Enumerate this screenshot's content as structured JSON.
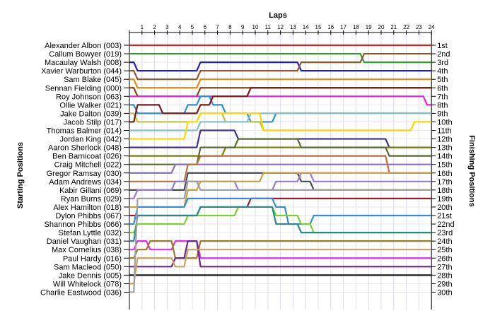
{
  "chart_data": {
    "type": "line",
    "title": "",
    "xlabel": "Laps",
    "ylabel_left": "Starting Positions",
    "ylabel_right": "Finishing Positions",
    "laps": [
      1,
      2,
      3,
      4,
      5,
      6,
      7,
      8,
      9,
      10,
      11,
      12,
      13,
      14,
      15,
      16,
      17,
      18,
      19,
      20,
      21,
      22,
      23,
      24
    ],
    "drivers": [
      "Alexander Albon (003)",
      "Callum Bowyer (019)",
      "Macaulay Walsh (008)",
      "Xavier Warburton (044)",
      "Sam Blake (045)",
      "Sennan Fielding (000)",
      "Roy Johnson (063)",
      "Ollie Walker (021)",
      "Jake Dalton (039)",
      "Jacob Stilp (017)",
      "Thomas Balmer (014)",
      "Jordan King (042)",
      "Aaron Sherlock (048)",
      "Ben Barnicoat (026)",
      "Craig Mitchell (022)",
      "Gregor Ramsay (030)",
      "Adam Andrews (034)",
      "Kabir Gillani (069)",
      "Ryan Burns (029)",
      "Alex Hamilton (018)",
      "Dylon Phibbs (067)",
      "Shannon Phibbs (066)",
      "Stefan Lyttle (032)",
      "Daniel Vaughan (031)",
      "Max Cornelius (038)",
      "Paul Hardy (016)",
      "Sam Macleod (050)",
      "Jake Dennis (005)",
      "Will Whitelock (078)",
      "Charlie Eastwood (036)"
    ],
    "finishing_labels": [
      "1st",
      "2nd",
      "3rd",
      "4th",
      "5th",
      "6th",
      "7th",
      "8th",
      "9th",
      "10th",
      "11th",
      "12th",
      "13th",
      "14th",
      "15th",
      "16th",
      "17th",
      "18th",
      "19th",
      "20th",
      "21st",
      "22nd",
      "23rd",
      "24th",
      "25th",
      "26th",
      "27th",
      "28th",
      "29th",
      "30th"
    ],
    "grid": true,
    "series": [
      {
        "color": "#d62728",
        "positions": [
          1,
          1,
          1,
          1,
          1,
          1,
          1,
          1,
          1,
          1,
          1,
          1,
          1,
          1,
          1,
          1,
          1,
          1,
          1,
          1,
          1,
          1,
          1,
          1,
          1
        ]
      },
      {
        "color": "#2ca02c",
        "positions": [
          2,
          2,
          2,
          2,
          2,
          2,
          2,
          2,
          2,
          2,
          2,
          2,
          2,
          2,
          2,
          2,
          2,
          2,
          2,
          3,
          3,
          3,
          3,
          3,
          3
        ]
      },
      {
        "color": "#2020c0",
        "positions": [
          3,
          4,
          4,
          4,
          4,
          4,
          3,
          3,
          3,
          3,
          3,
          3,
          3,
          3,
          4,
          4,
          4,
          4,
          4,
          4,
          4,
          4,
          4,
          4,
          4
        ]
      },
      {
        "color": "#8b5a2b",
        "positions": [
          4,
          5,
          5,
          5,
          5,
          5,
          4,
          4,
          4,
          4,
          4,
          4,
          4,
          4,
          3,
          3,
          3,
          3,
          3,
          2,
          2,
          2,
          2,
          2,
          2
        ]
      },
      {
        "color": "#e08a10",
        "positions": [
          5,
          6,
          6,
          6,
          6,
          6,
          5,
          5,
          5,
          5,
          5,
          5,
          5,
          5,
          5,
          5,
          5,
          5,
          5,
          5,
          5,
          5,
          5,
          5,
          5
        ]
      },
      {
        "color": "#8b4513",
        "positions": [
          6,
          7,
          7,
          7,
          7,
          7,
          6,
          6,
          6,
          6,
          6,
          6,
          6,
          6,
          6,
          6,
          6,
          6,
          6,
          6,
          6,
          6,
          6,
          6,
          6
        ]
      },
      {
        "color": "#e020e0",
        "positions": [
          7,
          7,
          7,
          7,
          7,
          7,
          7,
          7,
          7,
          7,
          7,
          7,
          7,
          7,
          7,
          7,
          7,
          7,
          7,
          7,
          7,
          7,
          7,
          7,
          8
        ]
      },
      {
        "color": "#2a8fd0",
        "positions": [
          8,
          9,
          9,
          9,
          9,
          8,
          7,
          8,
          9,
          9,
          10,
          10,
          9,
          9,
          9,
          9,
          9,
          9,
          9,
          9,
          9,
          9,
          9,
          9,
          9
        ]
      },
      {
        "color": "#c0c040",
        "positions": [
          9,
          10,
          10,
          10,
          10,
          10,
          9,
          9,
          10,
          10,
          10,
          11,
          11,
          11,
          11,
          11,
          11,
          11,
          11,
          11,
          11,
          11,
          11,
          10,
          10
        ]
      },
      {
        "color": "#7a1a1a",
        "positions": [
          10,
          8,
          8,
          9,
          9,
          9,
          8,
          7,
          7,
          7,
          6,
          6,
          6,
          6,
          6,
          6,
          6,
          6,
          6,
          6,
          6,
          6,
          6,
          6,
          6
        ]
      },
      {
        "color": "#7fc0c0",
        "positions": [
          11,
          11,
          11,
          11,
          11,
          11,
          10,
          10,
          10,
          10,
          9,
          9,
          9,
          9,
          9,
          9,
          9,
          9,
          9,
          9,
          9,
          9,
          9,
          9,
          9
        ]
      },
      {
        "color": "#ffd700",
        "positions": [
          12,
          12,
          12,
          12,
          12,
          10,
          9,
          9,
          9,
          9,
          9,
          11,
          11,
          11,
          11,
          11,
          11,
          11,
          11,
          11,
          11,
          11,
          11,
          10,
          10
        ]
      },
      {
        "color": "#40308a",
        "positions": [
          13,
          13,
          13,
          13,
          13,
          13,
          11,
          11,
          11,
          12,
          12,
          12,
          12,
          12,
          12,
          12,
          12,
          12,
          12,
          12,
          12,
          13,
          13,
          13,
          13
        ]
      },
      {
        "color": "#808000",
        "positions": [
          14,
          14,
          14,
          14,
          14,
          14,
          14,
          14,
          13,
          13,
          13,
          13,
          13,
          13,
          13,
          13,
          13,
          13,
          13,
          13,
          13,
          13,
          13,
          13,
          13
        ]
      },
      {
        "color": "#556b2f",
        "positions": [
          15,
          15,
          15,
          15,
          15,
          15,
          13,
          13,
          13,
          12,
          12,
          12,
          12,
          12,
          13,
          13,
          13,
          13,
          13,
          13,
          13,
          14,
          14,
          14,
          14
        ]
      },
      {
        "color": "#8a6fc0",
        "positions": [
          16,
          16,
          16,
          16,
          15,
          15,
          15,
          15,
          15,
          15,
          15,
          15,
          15,
          15,
          15,
          15,
          15,
          15,
          15,
          15,
          15,
          15,
          15,
          15,
          15
        ]
      },
      {
        "color": "#c07040",
        "positions": [
          17,
          17,
          17,
          17,
          17,
          15,
          14,
          14,
          14,
          14,
          14,
          14,
          14,
          14,
          14,
          14,
          14,
          14,
          14,
          14,
          14,
          16,
          16,
          16,
          16
        ]
      },
      {
        "color": "#4a4a5a",
        "positions": [
          18,
          18,
          18,
          18,
          18,
          16,
          16,
          16,
          16,
          16,
          16,
          16,
          16,
          16,
          17,
          18,
          18,
          18,
          18,
          18,
          18,
          18,
          18,
          18,
          18
        ]
      },
      {
        "color": "#9a7ad0",
        "positions": [
          19,
          18,
          18,
          18,
          17,
          17,
          17,
          17,
          17,
          18,
          18,
          18,
          17,
          17,
          16,
          17,
          17,
          17,
          17,
          17,
          17,
          17,
          17,
          17,
          17
        ]
      },
      {
        "color": "#c8a040",
        "positions": [
          20,
          20,
          20,
          20,
          20,
          18,
          17,
          17,
          17,
          17,
          17,
          16,
          16,
          16,
          16,
          16,
          16,
          16,
          16,
          16,
          16,
          16,
          16,
          16,
          16
        ]
      },
      {
        "color": "#9c1c2c",
        "positions": [
          21,
          21,
          21,
          21,
          21,
          21,
          20,
          20,
          20,
          20,
          19,
          19,
          19,
          19,
          19,
          19,
          19,
          19,
          19,
          19,
          19,
          19,
          19,
          19,
          19
        ]
      },
      {
        "color": "#3a8ad8",
        "positions": [
          22,
          20,
          20,
          20,
          20,
          19,
          19,
          19,
          19,
          19,
          19,
          19,
          20,
          22,
          22,
          21,
          21,
          21,
          21,
          21,
          21,
          21,
          21,
          21,
          21
        ]
      },
      {
        "color": "#7ad030",
        "positions": [
          23,
          22,
          22,
          22,
          22,
          21,
          21,
          21,
          21,
          20,
          20,
          20,
          21,
          21,
          22,
          23,
          23,
          23,
          23,
          23,
          23,
          23,
          23,
          23,
          23
        ]
      },
      {
        "color": "#2a8a8a",
        "positions": [
          24,
          21,
          21,
          21,
          21,
          21,
          20,
          20,
          20,
          20,
          20,
          20,
          22,
          22,
          23,
          23,
          23,
          23,
          23,
          23,
          23,
          23,
          23,
          23,
          23
        ]
      },
      {
        "color": "#e030e0",
        "positions": [
          25,
          24,
          25,
          25,
          24,
          24,
          26,
          26,
          26,
          26,
          26,
          26,
          26,
          26,
          26,
          26,
          26,
          26,
          26,
          26,
          26,
          26,
          26,
          26,
          26
        ]
      },
      {
        "color": "#a07a2a",
        "positions": [
          26,
          25,
          24,
          24,
          26,
          26,
          24,
          24,
          24,
          24,
          24,
          24,
          24,
          24,
          24,
          24,
          24,
          24,
          24,
          24,
          24,
          24,
          24,
          24,
          24
        ]
      },
      {
        "color": "#6a2a8a",
        "positions": [
          27,
          27,
          27,
          27,
          26,
          24,
          27,
          27,
          27,
          27,
          27,
          27,
          27,
          27,
          27,
          27,
          27,
          27,
          27,
          27,
          27,
          27,
          27,
          27,
          27
        ]
      },
      {
        "color": "#1a1a1a",
        "positions": [
          28,
          28,
          28,
          28,
          28,
          28,
          28,
          28,
          28,
          28,
          28,
          28,
          28,
          28,
          28,
          28,
          28,
          28,
          28,
          28,
          28,
          28,
          28,
          28,
          28
        ]
      },
      {
        "color": "#c8a060",
        "positions": [
          29,
          26,
          26,
          26,
          27,
          25,
          25,
          25,
          25,
          25,
          25,
          25,
          25,
          25,
          25,
          25,
          25,
          25,
          25,
          25,
          25,
          25,
          25,
          25,
          25
        ]
      },
      {
        "color": "#a0a0a0",
        "positions": [
          30,
          19,
          19,
          19,
          19,
          17,
          18,
          18,
          18,
          18,
          18,
          18,
          18,
          18,
          18,
          18,
          18,
          18,
          18,
          18,
          18,
          18,
          18,
          18,
          18
        ]
      }
    ]
  }
}
